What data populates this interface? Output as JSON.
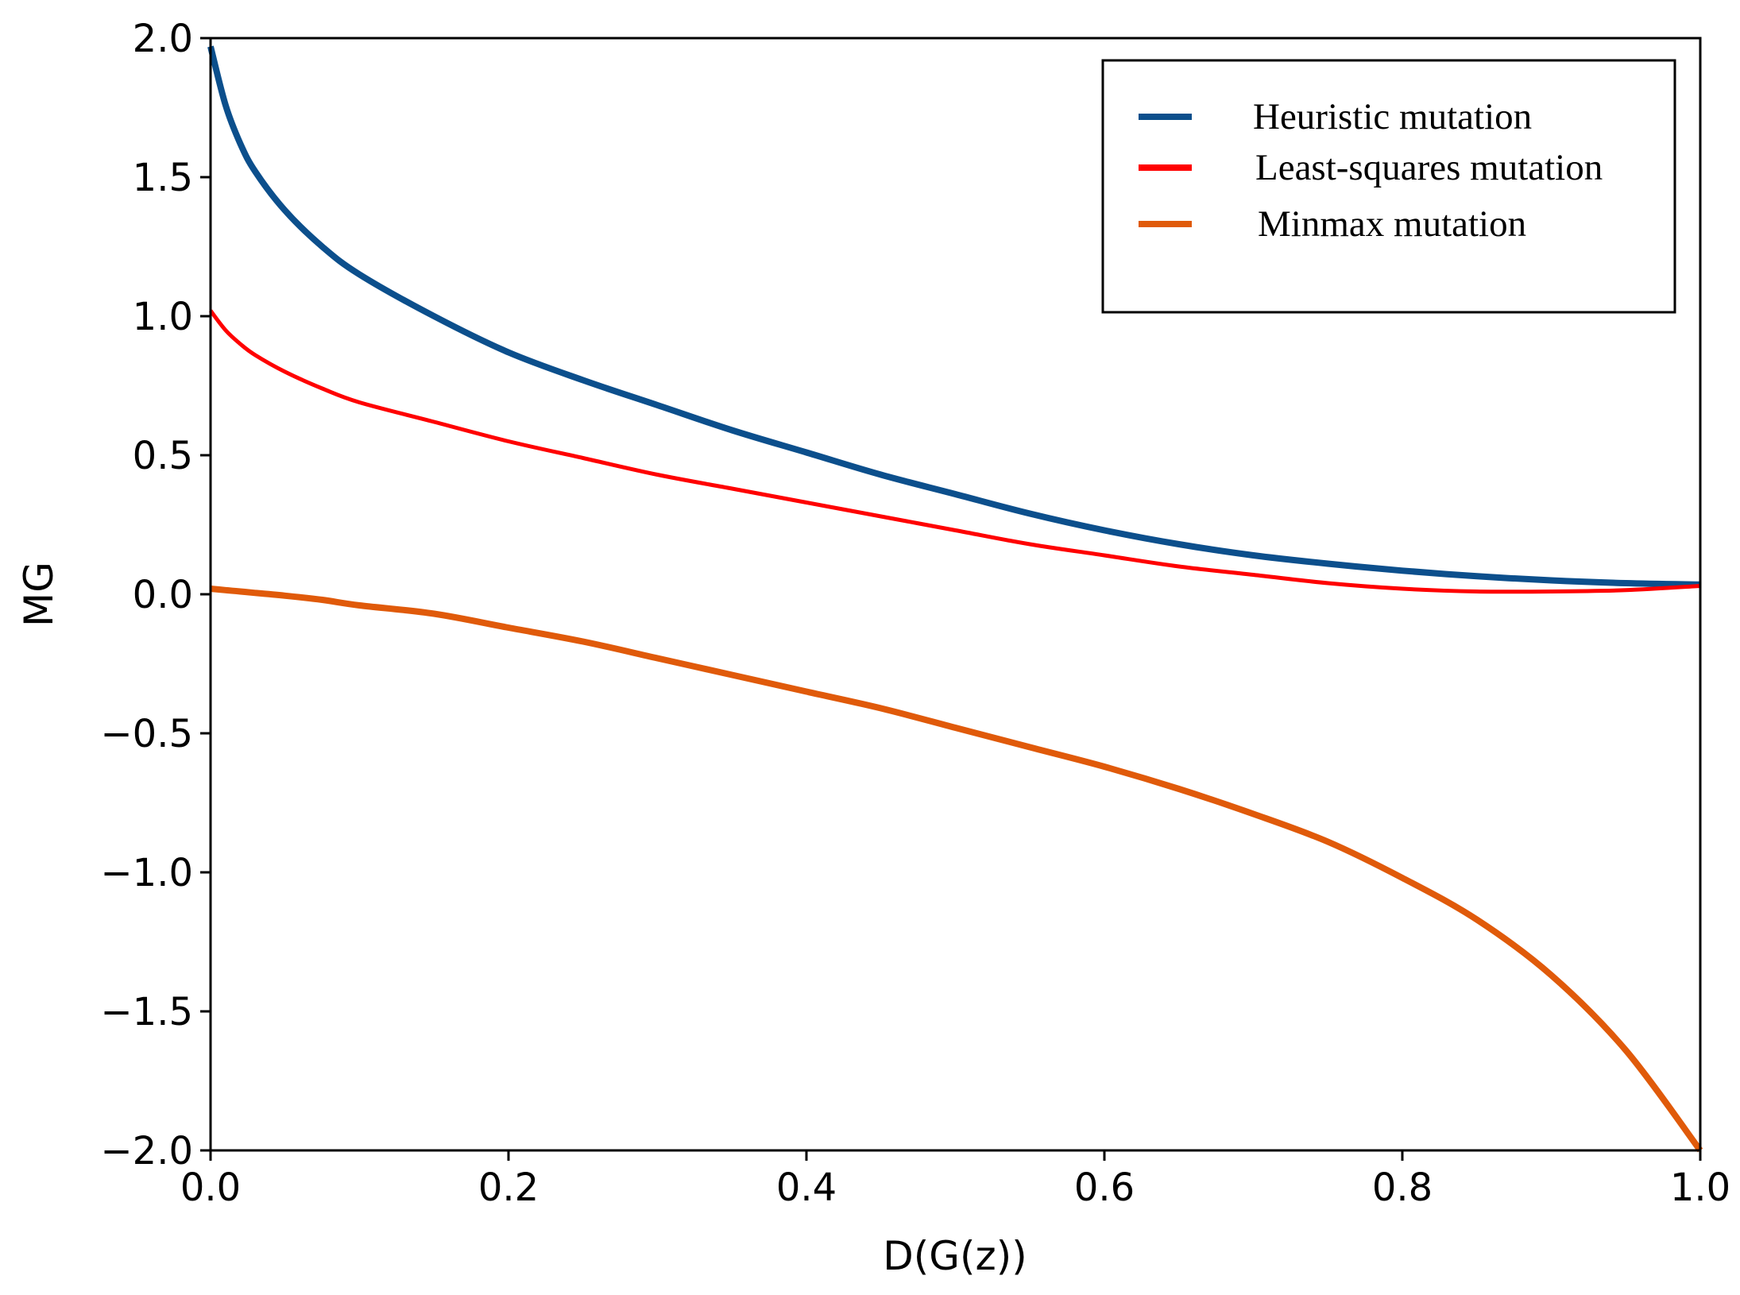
{
  "chart_data": {
    "type": "line",
    "title": "",
    "xlabel": "D(G(z))",
    "ylabel": "MG",
    "xlim": [
      0.0,
      1.0
    ],
    "ylim": [
      -2.0,
      2.0
    ],
    "grid": false,
    "legend_position": "top-right",
    "xticks": [
      0.0,
      0.2,
      0.4,
      0.6,
      0.8,
      1.0
    ],
    "xtick_labels": [
      "0.0",
      "0.2",
      "0.4",
      "0.6",
      "0.8",
      "1.0"
    ],
    "yticks": [
      2.0,
      1.5,
      1.0,
      0.5,
      0.0,
      -0.5,
      -1.0,
      -1.5,
      -2.0
    ],
    "ytick_labels": [
      "2.0",
      "1.5",
      "1.0",
      "0.5",
      "0.0",
      "−0.5",
      "−1.0",
      "−1.5",
      "−2.0"
    ],
    "x": [
      0.0,
      0.01,
      0.02,
      0.03,
      0.05,
      0.075,
      0.1,
      0.15,
      0.2,
      0.25,
      0.3,
      0.35,
      0.4,
      0.45,
      0.5,
      0.55,
      0.6,
      0.65,
      0.7,
      0.75,
      0.8,
      0.85,
      0.9,
      0.95,
      1.0
    ],
    "series": [
      {
        "name": "Heuristic mutation",
        "color": "#0c4f8c",
        "values": [
          1.97,
          1.76,
          1.62,
          1.52,
          1.38,
          1.25,
          1.15,
          1.0,
          0.87,
          0.77,
          0.68,
          0.59,
          0.51,
          0.43,
          0.36,
          0.29,
          0.23,
          0.18,
          0.14,
          0.11,
          0.085,
          0.065,
          0.05,
          0.04,
          0.035
        ]
      },
      {
        "name": "Least-squares mutation",
        "color": "#ff0000",
        "values": [
          1.02,
          0.95,
          0.9,
          0.86,
          0.8,
          0.74,
          0.69,
          0.62,
          0.55,
          0.49,
          0.43,
          0.38,
          0.33,
          0.28,
          0.23,
          0.18,
          0.14,
          0.1,
          0.07,
          0.04,
          0.02,
          0.01,
          0.01,
          0.015,
          0.03
        ]
      },
      {
        "name": "Minmax mutation",
        "color": "#e05a0a",
        "values": [
          0.02,
          0.015,
          0.01,
          0.005,
          -0.005,
          -0.02,
          -0.04,
          -0.07,
          -0.12,
          -0.17,
          -0.23,
          -0.29,
          -0.35,
          -0.41,
          -0.48,
          -0.55,
          -0.62,
          -0.7,
          -0.79,
          -0.89,
          -1.02,
          -1.17,
          -1.37,
          -1.64,
          -2.0
        ]
      }
    ]
  }
}
